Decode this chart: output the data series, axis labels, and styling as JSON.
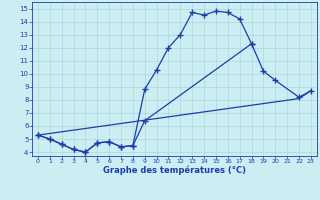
{
  "line1_x": [
    0,
    1,
    2,
    3,
    4,
    5,
    6,
    7,
    8,
    9,
    10,
    11,
    12,
    13,
    14,
    15,
    16,
    17,
    18
  ],
  "line1_y": [
    5.3,
    5.0,
    4.6,
    4.2,
    4.0,
    4.7,
    4.8,
    4.4,
    4.5,
    8.8,
    10.3,
    12.0,
    13.0,
    14.7,
    14.5,
    14.8,
    14.7,
    14.2,
    12.3
  ],
  "line2_x": [
    0,
    1,
    2,
    3,
    4,
    5,
    6,
    7,
    8,
    9,
    18,
    19,
    20,
    22,
    23
  ],
  "line2_y": [
    5.3,
    5.0,
    4.6,
    4.2,
    4.0,
    4.7,
    4.8,
    4.4,
    4.5,
    6.4,
    12.3,
    10.2,
    9.5,
    8.2,
    8.7
  ],
  "line3_x": [
    0,
    22,
    23
  ],
  "line3_y": [
    5.3,
    8.1,
    8.7
  ],
  "xlim_min": -0.5,
  "xlim_max": 23.5,
  "ylim_min": 3.7,
  "ylim_max": 15.5,
  "xticks": [
    0,
    1,
    2,
    3,
    4,
    5,
    6,
    7,
    8,
    9,
    10,
    11,
    12,
    13,
    14,
    15,
    16,
    17,
    18,
    19,
    20,
    21,
    22,
    23
  ],
  "yticks": [
    4,
    5,
    6,
    7,
    8,
    9,
    10,
    11,
    12,
    13,
    14,
    15
  ],
  "xlabel": "Graphe des températures (°C)",
  "line_color": "#1a3faa",
  "bg_color": "#cceef2",
  "grid_color": "#aad8de"
}
